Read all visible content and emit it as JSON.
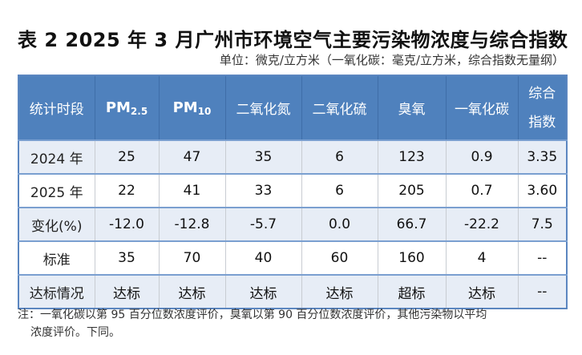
{
  "title": "表 2   2025 年 3 月广州市环境空气主要污染物浓度与综合指数",
  "unit": "单位：微克/立方米（一氧化碳：毫克/立方米，综合指数无量纲）",
  "header": {
    "period": "统计时段",
    "pm25_main": "PM",
    "pm25_sub": "2.5",
    "pm10_main": "PM",
    "pm10_sub": "10",
    "no2": "二氧化氮",
    "so2": "二氧化硫",
    "o3": "臭氧",
    "co": "一氧化碳",
    "index_l1": "综合",
    "index_l2": "指数"
  },
  "rows": [
    {
      "label": "2024 年",
      "values": [
        "25",
        "47",
        "35",
        "6",
        "123",
        "0.9",
        "3.35"
      ]
    },
    {
      "label": "2025 年",
      "values": [
        "22",
        "41",
        "33",
        "6",
        "205",
        "0.7",
        "3.60"
      ]
    },
    {
      "label": "变化(%)",
      "values": [
        "-12.0",
        "-12.8",
        "-5.7",
        "0.0",
        "66.7",
        "-22.2",
        "7.5"
      ]
    },
    {
      "label": "标准",
      "values": [
        "35",
        "70",
        "40",
        "60",
        "160",
        "4",
        "--"
      ]
    },
    {
      "label": "达标情况",
      "values": [
        "达标",
        "达标",
        "达标",
        "达标",
        "超标",
        "达标",
        "--"
      ]
    }
  ],
  "note": {
    "line1": "注：一氧化碳以第 95 百分位数浓度评价，臭氧以第 90 百分位数浓度评价，其他污染物以平均",
    "line2": "浓度评价。下同。"
  },
  "colors": {
    "header_bg": "#4f81bd",
    "alt_row": "#e7edf6"
  }
}
